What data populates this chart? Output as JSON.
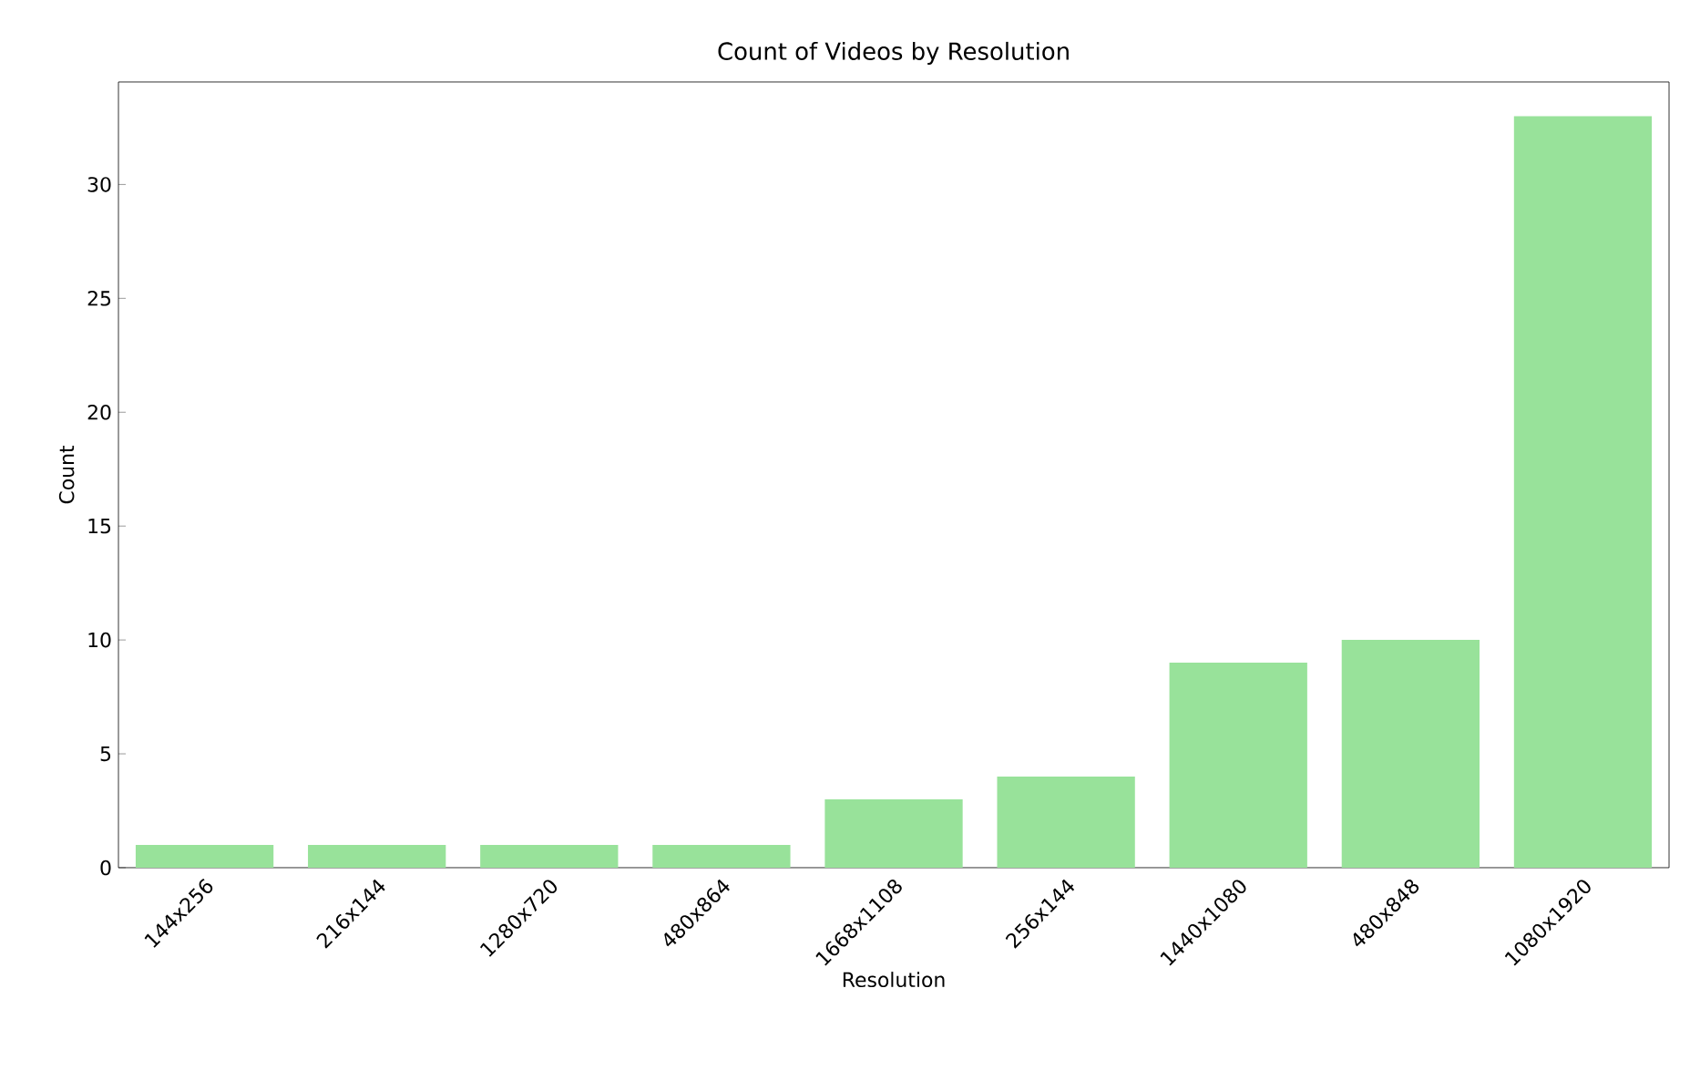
{
  "chart_data": {
    "type": "bar",
    "title": "Count of Videos by Resolution",
    "xlabel": "Resolution",
    "ylabel": "Count",
    "categories": [
      "144x256",
      "216x144",
      "1280x720",
      "480x864",
      "1668x1108",
      "256x144",
      "1440x1080",
      "480x848",
      "1080x1920"
    ],
    "values": [
      1,
      1,
      1,
      1,
      3,
      4,
      9,
      10,
      33
    ],
    "color": "#98e29a",
    "ylim": [
      0,
      34.5
    ],
    "yticks": [
      0,
      5,
      10,
      15,
      20,
      25,
      30
    ]
  }
}
